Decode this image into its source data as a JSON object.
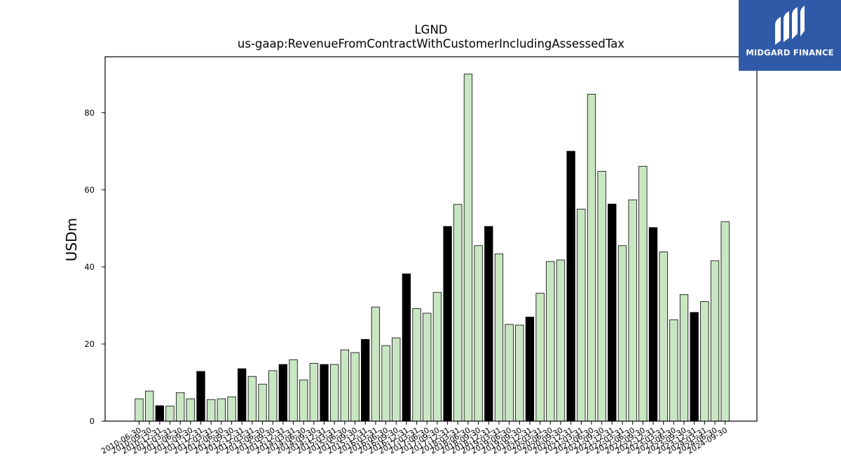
{
  "brand": {
    "name": "MIDGARD FINANCE",
    "colors": {
      "background": "#2f5aa8",
      "text": "#ffffff"
    },
    "icon": "midgard-logo-icon"
  },
  "chart_data": {
    "type": "bar",
    "title": "LGND",
    "subtitle": "us-gaap:RevenueFromContractWithCustomerIncludingAssessedTax",
    "xlabel": "",
    "ylabel": "USDm",
    "ylim": [
      0,
      94.5
    ],
    "yticks": [
      0,
      20,
      40,
      60,
      80
    ],
    "grid": false,
    "colors": {
      "quarter": "#c9e6c3",
      "year_end": "#000000",
      "edge": "#000000"
    },
    "categories": [
      "2010-06-30",
      "2010-09-30",
      "2010-12-31",
      "2011-03-31",
      "2011-06-30",
      "2011-09-30",
      "2011-12-31",
      "2012-03-31",
      "2012-06-30",
      "2012-09-30",
      "2012-12-31",
      "2013-03-31",
      "2013-06-30",
      "2013-09-30",
      "2013-12-31",
      "2014-03-31",
      "2014-06-30",
      "2014-09-30",
      "2014-12-31",
      "2015-03-31",
      "2015-06-30",
      "2015-09-30",
      "2015-12-31",
      "2016-03-31",
      "2016-06-30",
      "2016-09-30",
      "2016-12-31",
      "2017-03-31",
      "2017-06-30",
      "2017-09-30",
      "2017-12-31",
      "2018-03-31",
      "2018-06-30",
      "2018-09-30",
      "2018-12-31",
      "2019-03-31",
      "2019-06-30",
      "2019-09-30",
      "2019-12-31",
      "2020-03-31",
      "2020-06-30",
      "2020-09-30",
      "2020-12-31",
      "2021-03-31",
      "2021-06-30",
      "2021-09-30",
      "2021-12-31",
      "2022-03-31",
      "2022-06-30",
      "2022-09-30",
      "2022-12-31",
      "2023-03-31",
      "2023-06-30",
      "2023-09-30",
      "2023-12-31",
      "2024-03-31",
      "2024-06-30",
      "2024-09-30"
    ],
    "values": [
      5.8,
      7.8,
      4.0,
      3.9,
      7.4,
      5.8,
      12.9,
      5.6,
      5.8,
      6.3,
      13.6,
      11.6,
      9.6,
      13.1,
      14.7,
      15.9,
      10.7,
      15.0,
      14.7,
      14.7,
      18.5,
      17.8,
      21.2,
      29.6,
      19.6,
      21.6,
      38.2,
      29.2,
      28.0,
      33.4,
      50.5,
      56.2,
      90.0,
      45.5,
      50.5,
      43.4,
      25.1,
      24.9,
      27.0,
      33.2,
      41.4,
      41.8,
      70.0,
      55.0,
      84.8,
      64.8,
      56.3,
      45.5,
      57.4,
      66.1,
      50.2,
      43.9,
      26.3,
      32.8,
      28.2,
      31.0,
      41.6,
      51.7
    ],
    "highlight": [
      false,
      false,
      true,
      false,
      false,
      false,
      true,
      false,
      false,
      false,
      true,
      false,
      false,
      false,
      true,
      false,
      false,
      false,
      true,
      false,
      false,
      false,
      true,
      false,
      false,
      false,
      true,
      false,
      false,
      false,
      true,
      false,
      false,
      false,
      true,
      false,
      false,
      false,
      true,
      false,
      false,
      false,
      true,
      false,
      false,
      false,
      true,
      false,
      false,
      false,
      true,
      false,
      false,
      false,
      true,
      false,
      false,
      false
    ]
  }
}
